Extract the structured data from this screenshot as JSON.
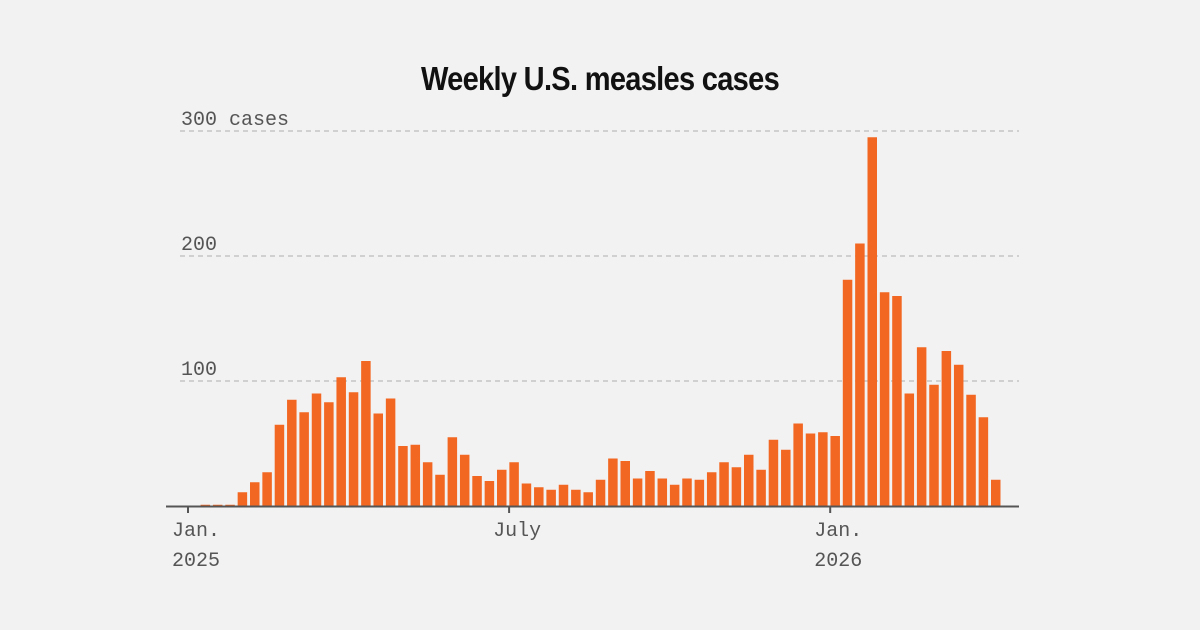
{
  "chart_data": {
    "type": "bar",
    "title": "Weekly U.S. measles cases",
    "xlabel": "",
    "ylabel": "cases",
    "ylim": [
      0,
      300
    ],
    "grid": true,
    "y_ticks": [
      {
        "value": 100,
        "label": "100"
      },
      {
        "value": 200,
        "label": "200"
      },
      {
        "value": 300,
        "label": "300 cases"
      }
    ],
    "x_ticks": [
      {
        "week_index": 0,
        "line1": "Jan.",
        "line2": "2025"
      },
      {
        "week_index": 26,
        "line1": "July",
        "line2": ""
      },
      {
        "week_index": 52,
        "line1": "Jan.",
        "line2": "2026"
      }
    ],
    "bar_color": "#f26722",
    "first_week_index": 0,
    "values": [
      0,
      1,
      1,
      1,
      11,
      19,
      27,
      65,
      85,
      75,
      90,
      83,
      103,
      91,
      116,
      74,
      86,
      48,
      49,
      35,
      25,
      55,
      41,
      24,
      20,
      29,
      35,
      18,
      15,
      13,
      17,
      13,
      11,
      21,
      38,
      36,
      22,
      28,
      22,
      17,
      22,
      21,
      27,
      35,
      31,
      41,
      29,
      53,
      45,
      66,
      58,
      59,
      56,
      181,
      210,
      295,
      171,
      168,
      90,
      127,
      97,
      124,
      113,
      89,
      71,
      21
    ]
  }
}
